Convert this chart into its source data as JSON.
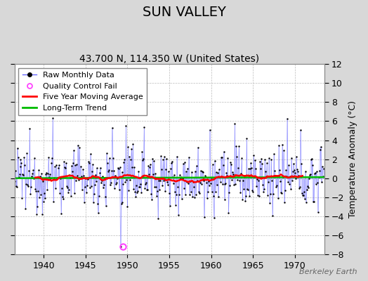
{
  "title": "SUN VALLEY",
  "subtitle": "43.700 N, 114.350 W (United States)",
  "ylabel": "Temperature Anomaly (°C)",
  "watermark": "Berkeley Earth",
  "x_start_year": 1936.5,
  "x_end_year": 1973.5,
  "ylim": [
    -8,
    12
  ],
  "yticks": [
    -8,
    -6,
    -4,
    -2,
    0,
    2,
    4,
    6,
    8,
    10,
    12
  ],
  "xticks": [
    1940,
    1945,
    1950,
    1955,
    1960,
    1965,
    1970
  ],
  "bg_color": "#d8d8d8",
  "plot_bg_color": "#ffffff",
  "grid_color": "#bbbbbb",
  "raw_line_color": "#6666ff",
  "raw_dot_color": "#000000",
  "qc_fail_color": "#ff44ff",
  "moving_avg_color": "#ff0000",
  "trend_color": "#00bb00",
  "title_fontsize": 14,
  "subtitle_fontsize": 10,
  "legend_fontsize": 8,
  "axis_fontsize": 9,
  "ylabel_fontsize": 9,
  "n_months": 444,
  "qc_fail_year": 1949.5,
  "qc_fail_value": -7.2
}
